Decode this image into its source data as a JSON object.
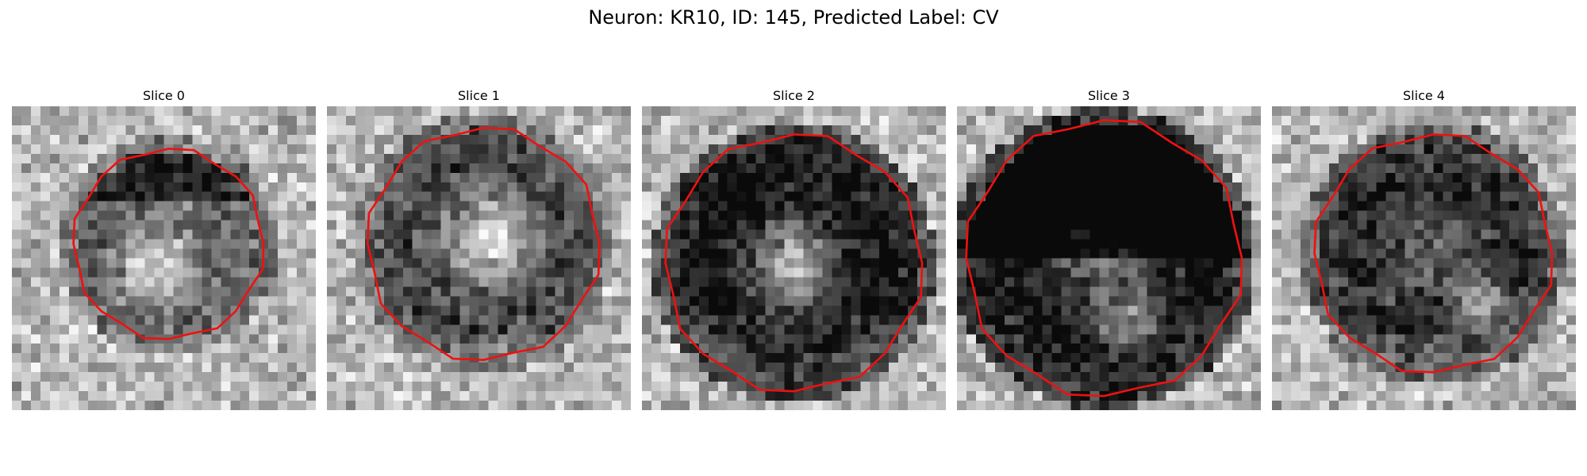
{
  "figure": {
    "title": "Neuron: KR10, ID: 145, Predicted Label: CV"
  },
  "colors": {
    "contour": "#ee1111",
    "background": "#ffffff"
  },
  "panels": [
    {
      "title": "Slice 0"
    },
    {
      "title": "Slice 1"
    },
    {
      "title": "Slice 2"
    },
    {
      "title": "Slice 3"
    },
    {
      "title": "Slice 4"
    }
  ]
}
